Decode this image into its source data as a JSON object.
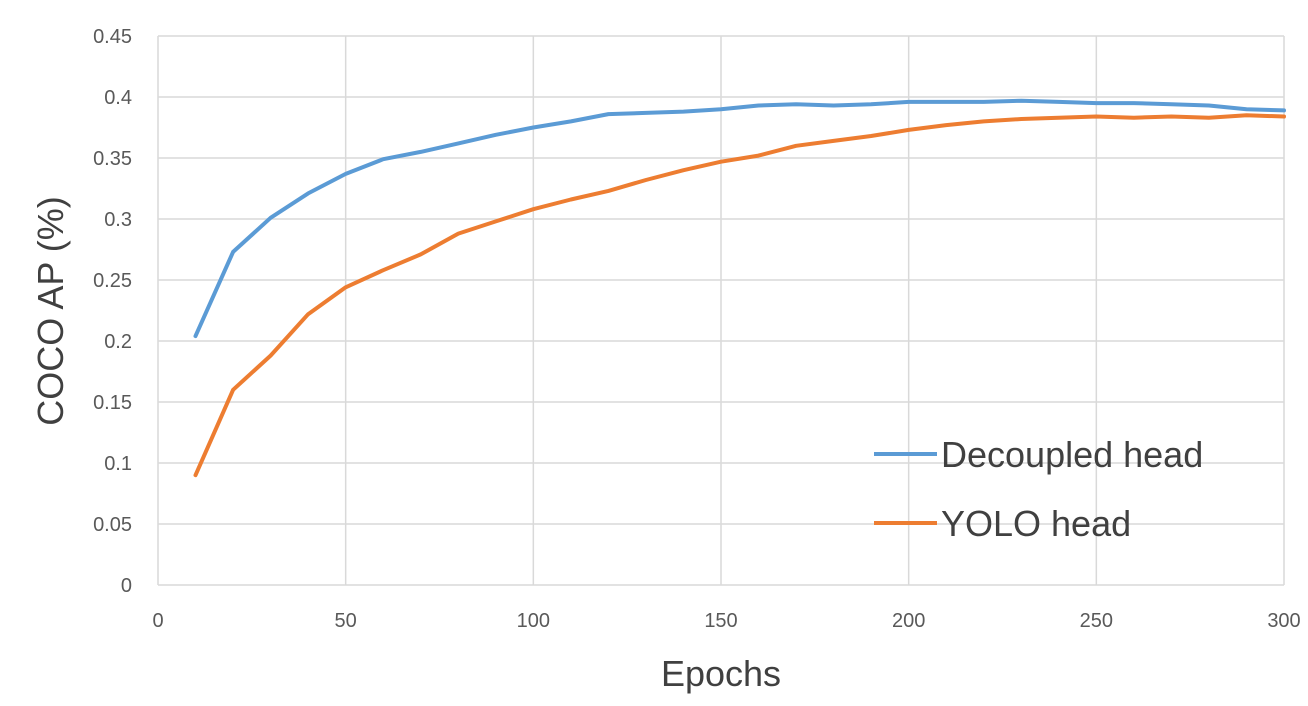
{
  "chart_data": {
    "type": "line",
    "title": "",
    "xlabel": "Epochs",
    "ylabel": "COCO AP (%)",
    "xlim": [
      0,
      300
    ],
    "ylim": [
      0,
      0.45
    ],
    "x_ticks": [
      0,
      50,
      100,
      150,
      200,
      250,
      300
    ],
    "x_tick_labels": [
      "0",
      "50",
      "100",
      "150",
      "200",
      "250",
      "300"
    ],
    "y_ticks": [
      0,
      0.05,
      0.1,
      0.15,
      0.2,
      0.25,
      0.3,
      0.35,
      0.4,
      0.45
    ],
    "y_tick_labels": [
      "0",
      "0.05",
      "0.1",
      "0.15",
      "0.2",
      "0.25",
      "0.3",
      "0.35",
      "0.4",
      "0.45"
    ],
    "grid": true,
    "legend_position": "bottom-right",
    "x": [
      10,
      20,
      30,
      40,
      50,
      60,
      70,
      80,
      90,
      100,
      110,
      120,
      130,
      140,
      150,
      160,
      170,
      180,
      190,
      200,
      210,
      220,
      230,
      240,
      250,
      260,
      270,
      280,
      290,
      300
    ],
    "series": [
      {
        "name": "Decoupled head",
        "color": "#5b9bd5",
        "values": [
          0.204,
          0.273,
          0.301,
          0.321,
          0.337,
          0.349,
          0.355,
          0.362,
          0.369,
          0.375,
          0.38,
          0.386,
          0.387,
          0.388,
          0.39,
          0.393,
          0.394,
          0.393,
          0.394,
          0.396,
          0.396,
          0.396,
          0.397,
          0.396,
          0.395,
          0.395,
          0.394,
          0.393,
          0.39,
          0.389
        ]
      },
      {
        "name": "YOLO head",
        "color": "#ed7d31",
        "values": [
          0.09,
          0.16,
          0.188,
          0.222,
          0.244,
          0.258,
          0.271,
          0.288,
          0.298,
          0.308,
          0.316,
          0.323,
          0.332,
          0.34,
          0.347,
          0.352,
          0.36,
          0.364,
          0.368,
          0.373,
          0.377,
          0.38,
          0.382,
          0.383,
          0.384,
          0.383,
          0.384,
          0.383,
          0.385,
          0.384
        ]
      }
    ]
  }
}
